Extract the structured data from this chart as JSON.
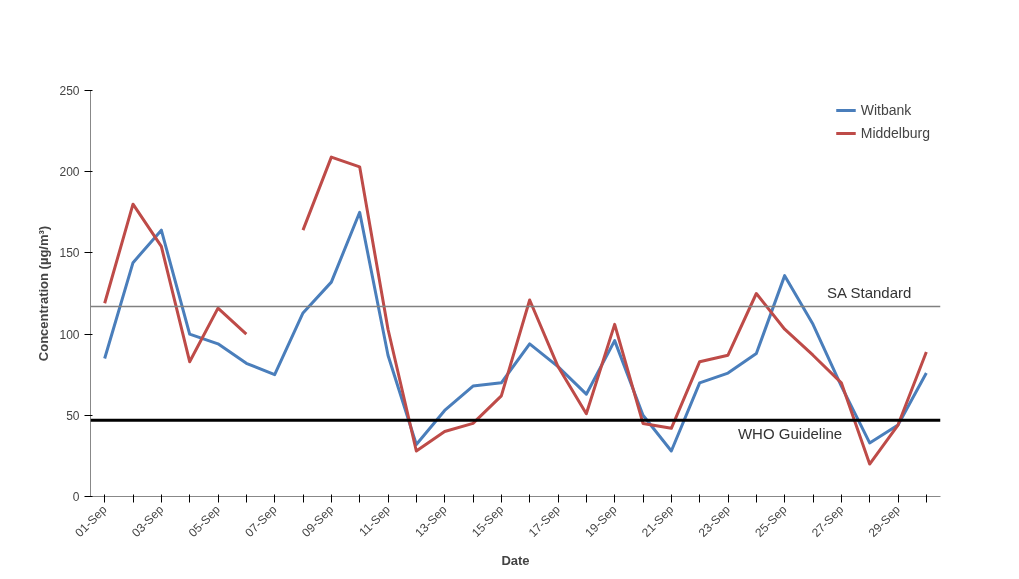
{
  "chart_data": {
    "type": "line",
    "xlabel": "Date",
    "ylabel": "Concentration (µg/m³)",
    "categories": [
      "01-Sep",
      null,
      "03-Sep",
      null,
      "05-Sep",
      null,
      "07-Sep",
      null,
      "09-Sep",
      null,
      "11-Sep",
      null,
      "13-Sep",
      null,
      "15-Sep",
      null,
      "17-Sep",
      null,
      "19-Sep",
      null,
      "21-Sep",
      null,
      "23-Sep",
      null,
      "25-Sep",
      null,
      "27-Sep",
      null,
      "29-Sep",
      null
    ],
    "series": [
      {
        "name": "Witbank",
        "color": "#4a7ebb",
        "values": [
          85,
          144,
          164,
          100,
          94,
          82,
          75,
          113,
          132,
          175,
          87,
          32,
          53,
          68,
          70,
          94,
          80,
          63,
          96,
          50,
          28,
          70,
          76,
          88,
          136,
          106,
          68,
          33,
          44,
          76
        ]
      },
      {
        "name": "Middelburg",
        "color": "#be4b48",
        "values": [
          119,
          180,
          154,
          83,
          116,
          100,
          null,
          164,
          209,
          203,
          103,
          28,
          40,
          45,
          62,
          121,
          80,
          51,
          106,
          45,
          42,
          83,
          87,
          125,
          103,
          87,
          70,
          20,
          44,
          89
        ]
      }
    ],
    "ylim": [
      0,
      250
    ],
    "yticks": [
      0,
      50,
      100,
      150,
      200,
      250
    ],
    "ref_lines": [
      {
        "axis": "y",
        "value": 117,
        "label": "SA Standard",
        "color": "#808080"
      },
      {
        "axis": "y",
        "value": 47,
        "label": "WHO Guideline",
        "color": "#000000"
      }
    ],
    "grid": false,
    "legend": "top right",
    "marker": "none",
    "line_style": "solid"
  }
}
